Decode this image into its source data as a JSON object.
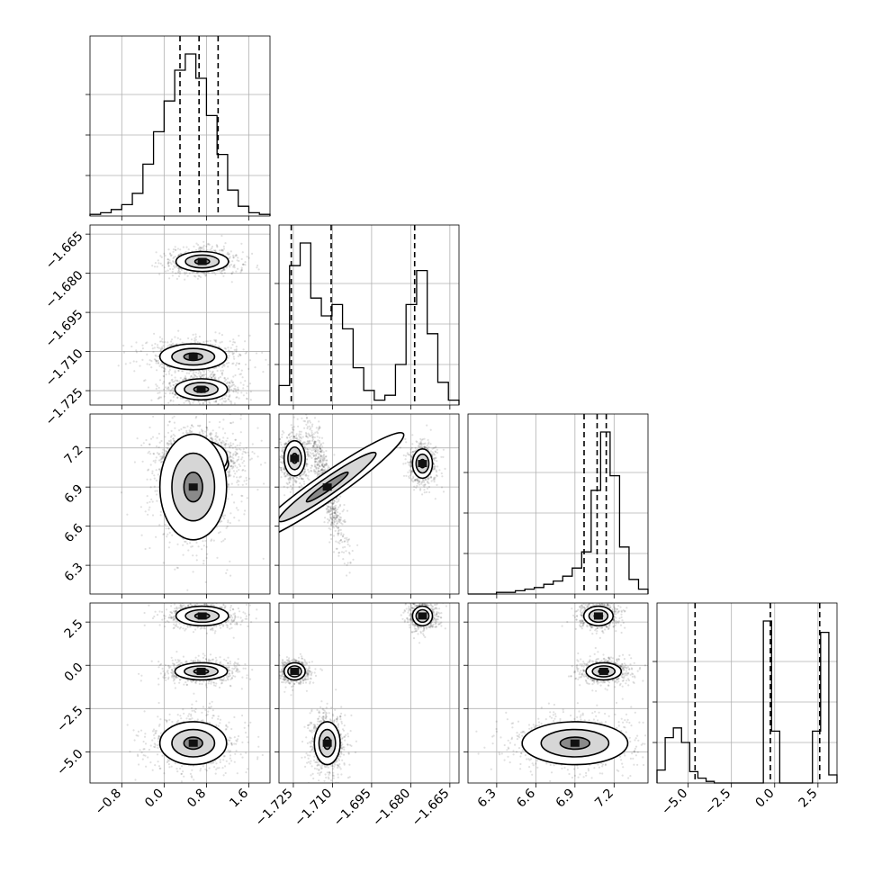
{
  "chart_data": {
    "type": "corner",
    "parameters": [
      "p0",
      "p1",
      "p2",
      "p3"
    ],
    "axes": {
      "p0": {
        "range": [
          -1.4,
          2.0
        ],
        "ticks": [
          -0.8,
          0.0,
          0.8,
          1.6
        ],
        "tick_labels": [
          "−0.8",
          "0.0",
          "0.8",
          "1.6"
        ]
      },
      "p1": {
        "range": [
          -1.7305,
          -1.6615
        ],
        "ticks": [
          -1.725,
          -1.71,
          -1.695,
          -1.68,
          -1.665
        ],
        "tick_labels": [
          "−1.725",
          "−1.710",
          "−1.695",
          "−1.680",
          "−1.665"
        ]
      },
      "p2": {
        "range": [
          6.08,
          7.46
        ],
        "ticks": [
          6.3,
          6.6,
          6.9,
          7.2
        ],
        "tick_labels": [
          "6.3",
          "6.6",
          "6.9",
          "7.2"
        ]
      },
      "p3": {
        "range": [
          -6.8,
          3.6
        ],
        "ticks": [
          -5.0,
          -2.5,
          0.0,
          2.5
        ],
        "tick_labels": [
          "−5.0",
          "−2.5",
          "0.0",
          "2.5"
        ]
      }
    },
    "histograms": [
      {
        "param": "p0",
        "counts": [
          1,
          2,
          4,
          7,
          14,
          32,
          52,
          71,
          90,
          100,
          85,
          62,
          38,
          16,
          6,
          2,
          1
        ],
        "quantiles": [
          0.3,
          0.66,
          1.02
        ]
      },
      {
        "param": "p1",
        "counts": [
          12,
          86,
          100,
          66,
          55,
          62,
          47,
          23,
          9,
          3,
          6,
          25,
          62,
          83,
          44,
          14,
          3
        ],
        "quantiles": [
          -1.7258,
          -1.7105,
          -1.6785
        ]
      },
      {
        "param": "p2",
        "counts": [
          0,
          0,
          0,
          1,
          1,
          2,
          3,
          4,
          6,
          8,
          11,
          16,
          26,
          64,
          100,
          73,
          29,
          9,
          3
        ],
        "quantiles": [
          6.97,
          7.07,
          7.14
        ]
      },
      {
        "param": "p3",
        "counts": [
          8,
          28,
          34,
          25,
          7,
          3,
          1,
          0,
          0,
          0,
          0,
          0,
          0,
          100,
          32,
          0,
          0,
          0,
          0,
          32,
          93,
          5
        ],
        "quantiles": [
          -4.6,
          -0.25,
          2.6
        ]
      }
    ],
    "modes": [
      {
        "p0": 0.72,
        "p1": -1.6755,
        "p2": 7.08,
        "p3": 2.85
      },
      {
        "p0": 0.7,
        "p1": -1.7245,
        "p2": 7.12,
        "p3": -0.35
      },
      {
        "p0": 0.55,
        "p1": -1.712,
        "p2": 6.9,
        "p3": -4.5
      }
    ],
    "title": "",
    "xlabel": "",
    "ylabel": "",
    "grid": true,
    "legend": "none"
  }
}
